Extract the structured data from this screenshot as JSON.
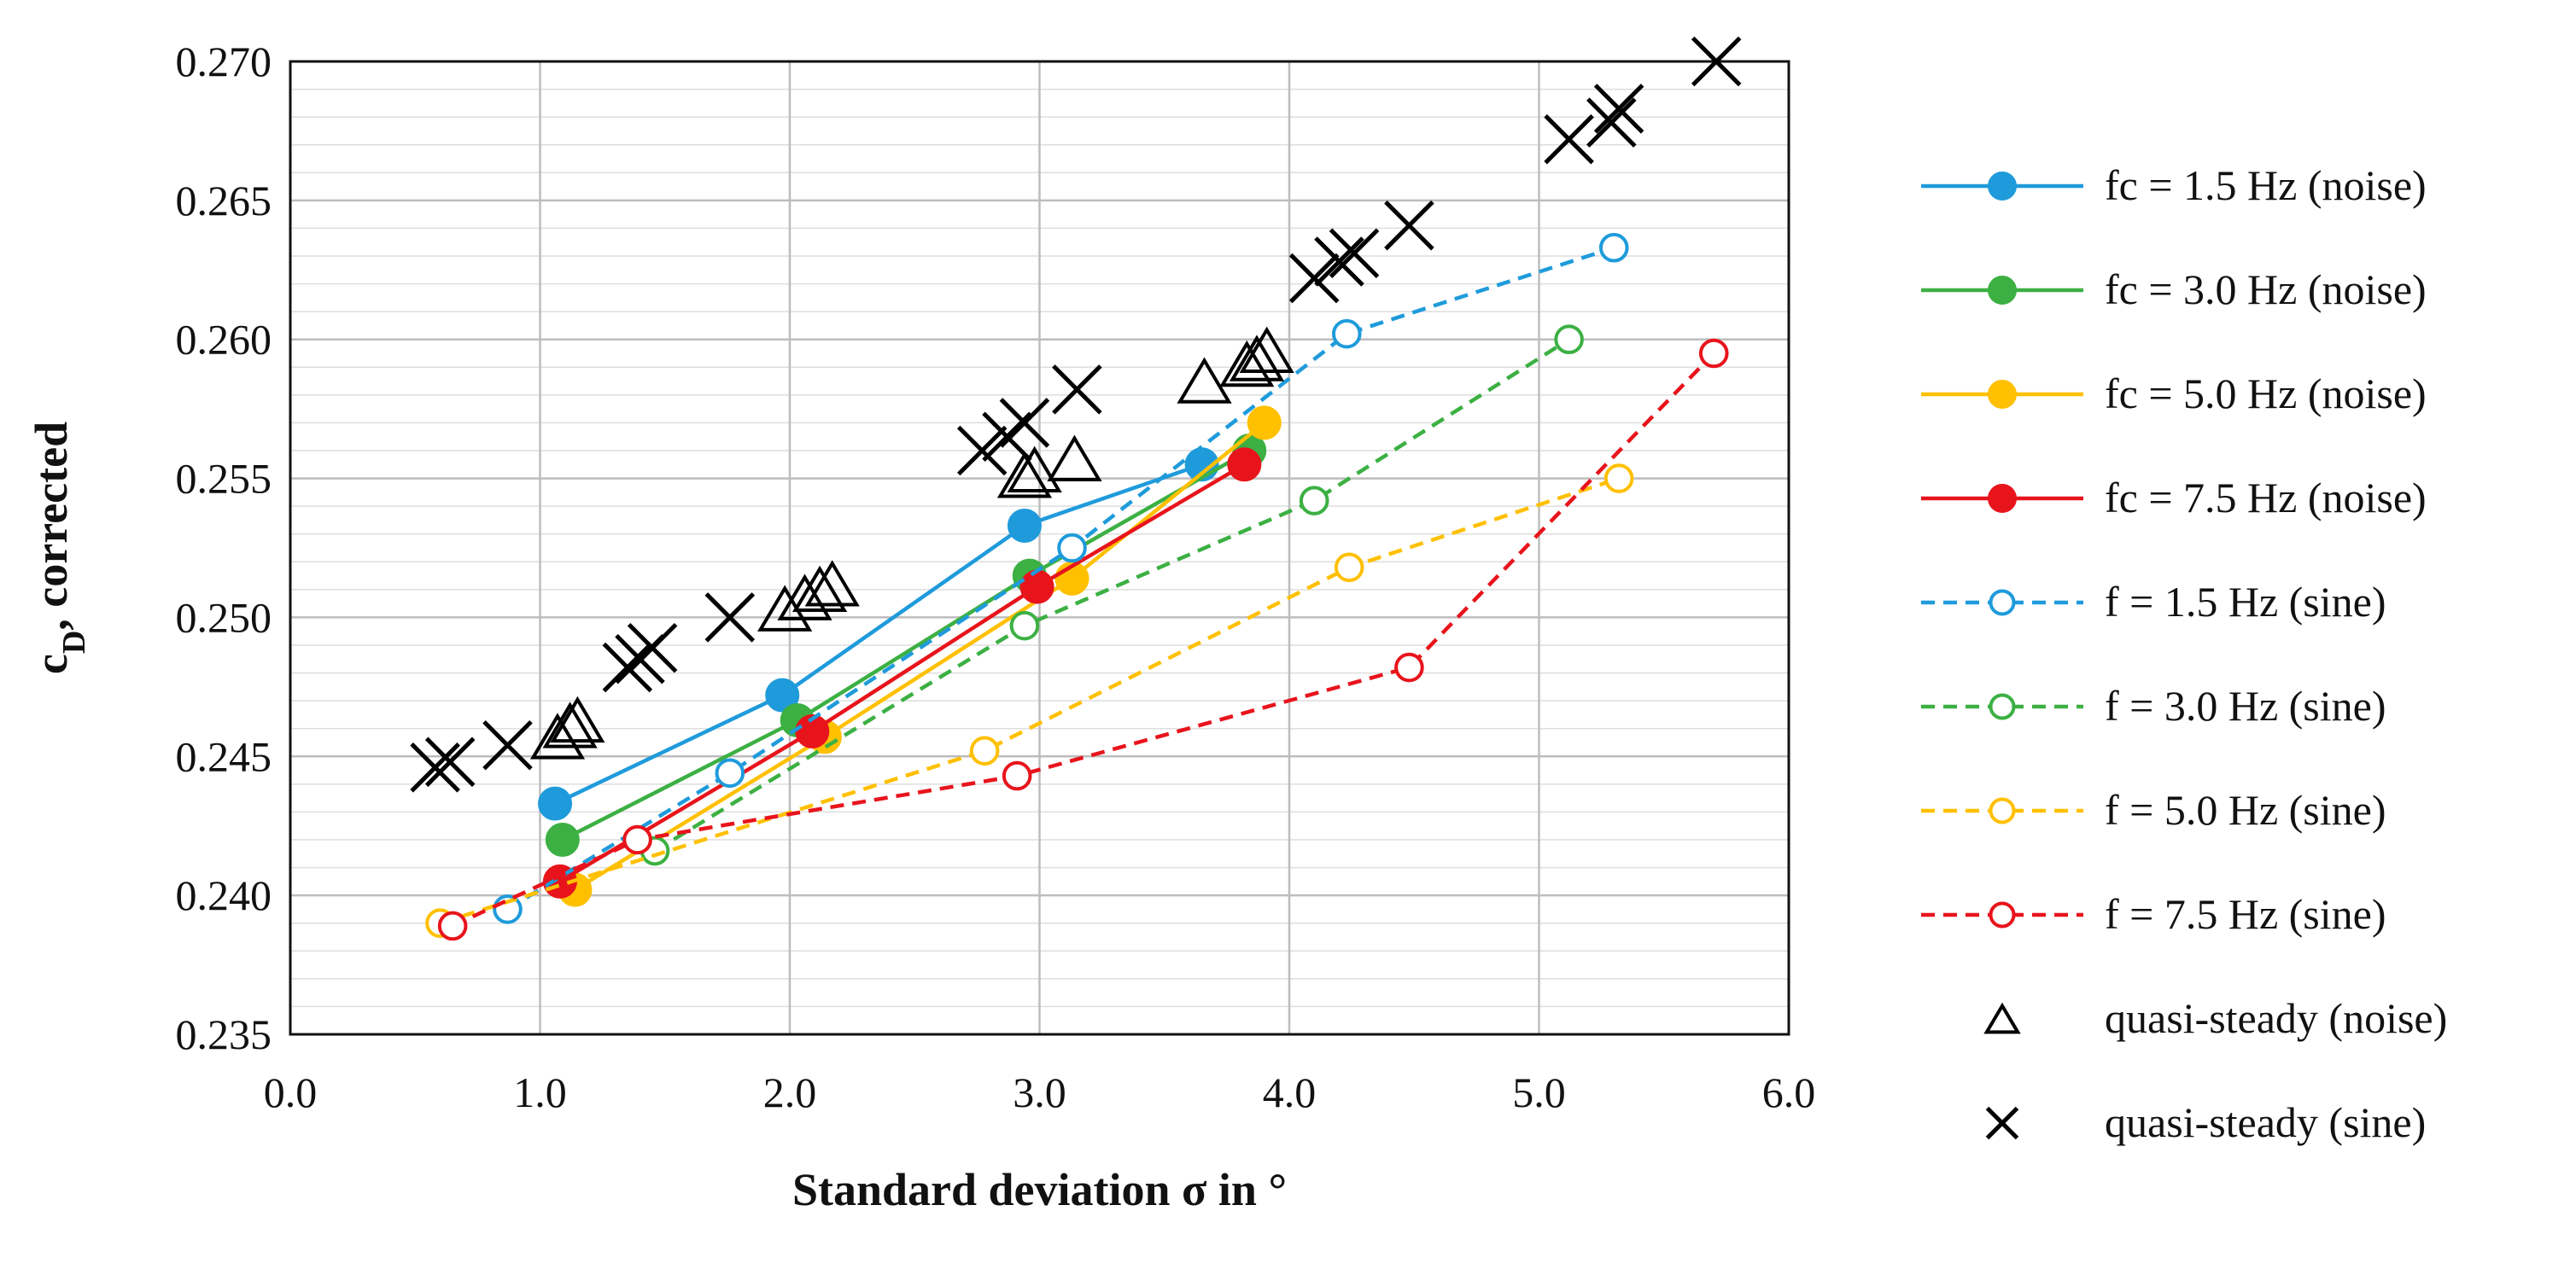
{
  "chart_data": {
    "type": "scatter",
    "title": "",
    "xlabel": "Standard deviation σ in °",
    "ylabel_main": "c",
    "ylabel_sub": "D",
    "ylabel_rest": ", corrected",
    "xlim": [
      0.0,
      6.0
    ],
    "ylim": [
      0.235,
      0.27
    ],
    "x_ticks": [
      "0.0",
      "1.0",
      "2.0",
      "3.0",
      "4.0",
      "5.0",
      "6.0"
    ],
    "y_ticks": [
      "0.235",
      "0.240",
      "0.245",
      "0.250",
      "0.255",
      "0.260",
      "0.265",
      "0.270"
    ],
    "grid": "horizontal",
    "legend_position": "right",
    "series": [
      {
        "name": "fc = 1.5 Hz (noise)",
        "color": "#1f9bdb",
        "line": "solid",
        "marker": "filled-circle",
        "points": [
          [
            1.06,
            0.2433
          ],
          [
            1.97,
            0.2472
          ],
          [
            2.94,
            0.2533
          ],
          [
            3.65,
            0.2555
          ]
        ]
      },
      {
        "name": "fc = 3.0 Hz (noise)",
        "color": "#3cb043",
        "line": "solid",
        "marker": "filled-circle",
        "points": [
          [
            1.09,
            0.242
          ],
          [
            2.03,
            0.2463
          ],
          [
            2.96,
            0.2515
          ],
          [
            3.84,
            0.256
          ]
        ]
      },
      {
        "name": "fc = 5.0 Hz (noise)",
        "color": "#ffc000",
        "line": "solid",
        "marker": "filled-circle",
        "points": [
          [
            1.14,
            0.2402
          ],
          [
            2.14,
            0.2457
          ],
          [
            3.13,
            0.2514
          ],
          [
            3.9,
            0.257
          ]
        ]
      },
      {
        "name": "fc = 7.5 Hz (noise)",
        "color": "#e8141c",
        "line": "solid",
        "marker": "filled-circle",
        "points": [
          [
            1.08,
            0.2405
          ],
          [
            2.09,
            0.2459
          ],
          [
            2.99,
            0.2511
          ],
          [
            3.82,
            0.2555
          ]
        ]
      },
      {
        "name": "f = 1.5 Hz (sine)",
        "color": "#1f9bdb",
        "line": "dashed",
        "marker": "open-circle",
        "points": [
          [
            0.87,
            0.2395
          ],
          [
            1.76,
            0.2444
          ],
          [
            3.13,
            0.2525
          ],
          [
            4.23,
            0.2602
          ],
          [
            5.3,
            0.2633
          ]
        ]
      },
      {
        "name": "f = 3.0 Hz (sine)",
        "color": "#3cb043",
        "line": "dashed",
        "marker": "open-circle",
        "points": [
          [
            1.46,
            0.2416
          ],
          [
            2.94,
            0.2497
          ],
          [
            4.1,
            0.2542
          ],
          [
            5.12,
            0.26
          ]
        ]
      },
      {
        "name": "f = 5.0 Hz (sine)",
        "color": "#ffc000",
        "line": "dashed",
        "marker": "open-circle",
        "points": [
          [
            0.6,
            0.239
          ],
          [
            2.78,
            0.2452
          ],
          [
            4.24,
            0.2518
          ],
          [
            5.32,
            0.255
          ]
        ]
      },
      {
        "name": "f = 7.5 Hz (sine)",
        "color": "#e8141c",
        "line": "dashed",
        "marker": "open-circle",
        "points": [
          [
            0.65,
            0.2389
          ],
          [
            1.39,
            0.242
          ],
          [
            2.91,
            0.2443
          ],
          [
            4.48,
            0.2482
          ],
          [
            5.7,
            0.2595
          ]
        ]
      },
      {
        "name": "quasi-steady (noise)",
        "color": "#000000",
        "line": "none",
        "marker": "triangle",
        "points": [
          [
            1.07,
            0.2457
          ],
          [
            1.12,
            0.2461
          ],
          [
            1.15,
            0.2463
          ],
          [
            1.98,
            0.2503
          ],
          [
            2.06,
            0.2507
          ],
          [
            2.12,
            0.251
          ],
          [
            2.17,
            0.2512
          ],
          [
            2.94,
            0.2551
          ],
          [
            2.98,
            0.2553
          ],
          [
            3.14,
            0.2557
          ],
          [
            3.66,
            0.2585
          ],
          [
            3.83,
            0.2591
          ],
          [
            3.87,
            0.2593
          ],
          [
            3.91,
            0.2596
          ]
        ]
      },
      {
        "name": "quasi-steady (sine)",
        "color": "#000000",
        "line": "none",
        "marker": "cross",
        "points": [
          [
            0.58,
            0.2446
          ],
          [
            0.64,
            0.2448
          ],
          [
            0.87,
            0.2454
          ],
          [
            1.35,
            0.2482
          ],
          [
            1.4,
            0.2485
          ],
          [
            1.45,
            0.2489
          ],
          [
            1.76,
            0.25
          ],
          [
            2.77,
            0.256
          ],
          [
            2.87,
            0.2565
          ],
          [
            2.94,
            0.257
          ],
          [
            3.15,
            0.2582
          ],
          [
            4.1,
            0.2622
          ],
          [
            4.2,
            0.2628
          ],
          [
            4.26,
            0.2631
          ],
          [
            4.48,
            0.2641
          ],
          [
            5.12,
            0.2672
          ],
          [
            5.29,
            0.2678
          ],
          [
            5.32,
            0.2683
          ],
          [
            5.71,
            0.27
          ]
        ]
      }
    ]
  }
}
